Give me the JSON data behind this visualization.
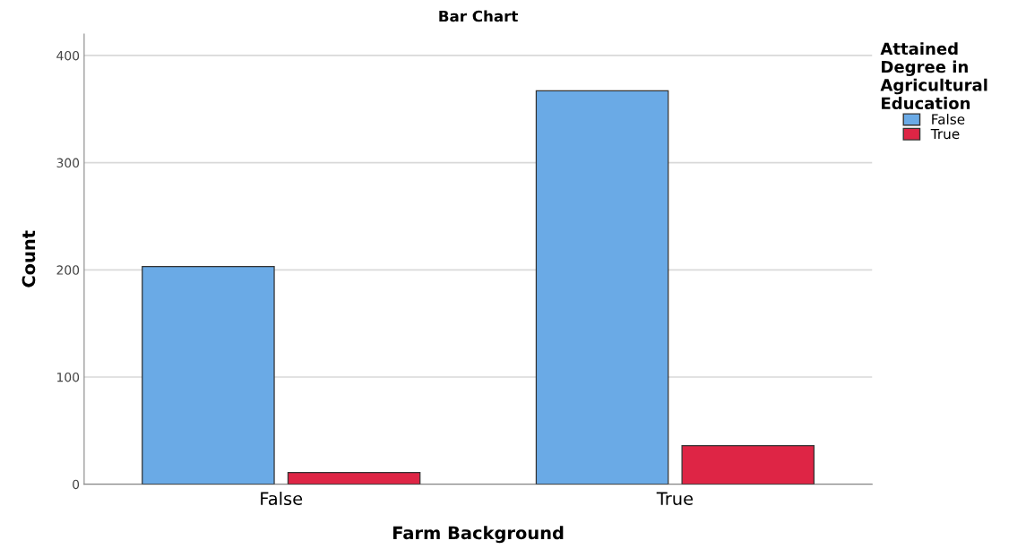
{
  "chart_data": {
    "type": "bar",
    "title": "Bar Chart",
    "xlabel": "Farm Background",
    "ylabel": "Count",
    "legend_title": "Attained\nDegree in\nAgricultural\nEducation",
    "categories": [
      "False",
      "True"
    ],
    "series": [
      {
        "name": "False",
        "color": "#6aaae6",
        "values": [
          203,
          367
        ]
      },
      {
        "name": "True",
        "color": "#de2545",
        "values": [
          11,
          36
        ]
      }
    ],
    "ylim": [
      0,
      420
    ],
    "yticks": [
      0,
      100,
      200,
      300,
      400
    ],
    "grid": "y",
    "legend": "top right"
  }
}
